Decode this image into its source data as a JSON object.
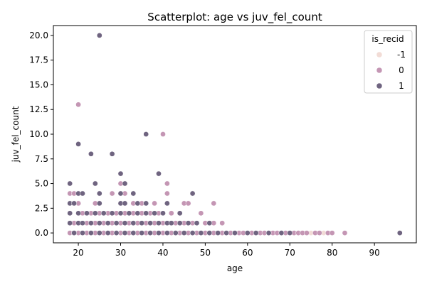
{
  "chart_data": {
    "type": "scatter",
    "title": "Scatterplot: age vs juv_fel_count",
    "xlabel": "age",
    "ylabel": "juv_fel_count",
    "xlim": [
      14.1,
      99.9
    ],
    "ylim": [
      -1.0,
      21.0
    ],
    "xticks": [
      20,
      30,
      40,
      50,
      60,
      70,
      80,
      90
    ],
    "xtick_labels": [
      "20",
      "30",
      "40",
      "50",
      "60",
      "70",
      "80",
      "90"
    ],
    "yticks": [
      0,
      2.5,
      5,
      7.5,
      10,
      12.5,
      15,
      17.5,
      20
    ],
    "ytick_labels": [
      "0.0",
      "2.5",
      "5.0",
      "7.5",
      "10.0",
      "12.5",
      "15.0",
      "17.5",
      "20.0"
    ],
    "grid": false,
    "legend": {
      "title": "is_recid",
      "placement": "top-right",
      "entries": [
        {
          "label": "-1",
          "color": "#f2dcd6"
        },
        {
          "label": "0",
          "color": "#c496b4"
        },
        {
          "label": "1",
          "color": "#6f6480"
        }
      ]
    },
    "series": [
      {
        "name": "-1",
        "color": "#f2dcd6",
        "points": [
          [
            18,
            0
          ],
          [
            19,
            0
          ],
          [
            22,
            0
          ],
          [
            25,
            0
          ],
          [
            28,
            0
          ],
          [
            31,
            0
          ],
          [
            34,
            0
          ],
          [
            37,
            0
          ],
          [
            39,
            0
          ],
          [
            41,
            0
          ],
          [
            44,
            0
          ],
          [
            47,
            0
          ],
          [
            50,
            0
          ],
          [
            53,
            0
          ],
          [
            56,
            0
          ],
          [
            75,
            0
          ],
          [
            78,
            0
          ],
          [
            19,
            1
          ],
          [
            23,
            1
          ],
          [
            27,
            1
          ],
          [
            33,
            1
          ],
          [
            38,
            1
          ]
        ]
      },
      {
        "name": "0",
        "color": "#c496b4",
        "points": [
          [
            20,
            13
          ],
          [
            40,
            10
          ],
          [
            41,
            5
          ],
          [
            41,
            4
          ],
          [
            52,
            3
          ],
          [
            45,
            3
          ],
          [
            49,
            2
          ],
          [
            46,
            3
          ],
          [
            38,
            3
          ],
          [
            35,
            3
          ],
          [
            33,
            3
          ],
          [
            31,
            4
          ],
          [
            30,
            5
          ],
          [
            28,
            4
          ],
          [
            24,
            3
          ],
          [
            20,
            3
          ],
          [
            18,
            4
          ],
          [
            19,
            4
          ],
          [
            21,
            2
          ],
          [
            23,
            2
          ],
          [
            25,
            2
          ],
          [
            27,
            2
          ],
          [
            29,
            2
          ],
          [
            31,
            2
          ],
          [
            33,
            2
          ],
          [
            35,
            2
          ],
          [
            37,
            2
          ],
          [
            39,
            2
          ],
          [
            42,
            2
          ],
          [
            19,
            1
          ],
          [
            22,
            1
          ],
          [
            24,
            1
          ],
          [
            26,
            1
          ],
          [
            28,
            1
          ],
          [
            30,
            1
          ],
          [
            32,
            1
          ],
          [
            34,
            1
          ],
          [
            36,
            1
          ],
          [
            38,
            1
          ],
          [
            40,
            1
          ],
          [
            43,
            1
          ],
          [
            45,
            1
          ],
          [
            47,
            1
          ],
          [
            50,
            1
          ],
          [
            52,
            1
          ],
          [
            54,
            1
          ],
          [
            18,
            0
          ],
          [
            19,
            0
          ],
          [
            20,
            0
          ],
          [
            21,
            0
          ],
          [
            22,
            0
          ],
          [
            23,
            0
          ],
          [
            24,
            0
          ],
          [
            25,
            0
          ],
          [
            26,
            0
          ],
          [
            27,
            0
          ],
          [
            28,
            0
          ],
          [
            29,
            0
          ],
          [
            30,
            0
          ],
          [
            31,
            0
          ],
          [
            32,
            0
          ],
          [
            33,
            0
          ],
          [
            34,
            0
          ],
          [
            35,
            0
          ],
          [
            36,
            0
          ],
          [
            37,
            0
          ],
          [
            38,
            0
          ],
          [
            39,
            0
          ],
          [
            40,
            0
          ],
          [
            41,
            0
          ],
          [
            42,
            0
          ],
          [
            43,
            0
          ],
          [
            44,
            0
          ],
          [
            45,
            0
          ],
          [
            46,
            0
          ],
          [
            47,
            0
          ],
          [
            48,
            0
          ],
          [
            49,
            0
          ],
          [
            50,
            0
          ],
          [
            51,
            0
          ],
          [
            52,
            0
          ],
          [
            53,
            0
          ],
          [
            54,
            0
          ],
          [
            55,
            0
          ],
          [
            56,
            0
          ],
          [
            57,
            0
          ],
          [
            58,
            0
          ],
          [
            59,
            0
          ],
          [
            60,
            0
          ],
          [
            61,
            0
          ],
          [
            62,
            0
          ],
          [
            63,
            0
          ],
          [
            64,
            0
          ],
          [
            65,
            0
          ],
          [
            66,
            0
          ],
          [
            67,
            0
          ],
          [
            68,
            0
          ],
          [
            69,
            0
          ],
          [
            70,
            0
          ],
          [
            71,
            0
          ],
          [
            72,
            0
          ],
          [
            73,
            0
          ],
          [
            74,
            0
          ],
          [
            76,
            0
          ],
          [
            77,
            0
          ],
          [
            79,
            0
          ],
          [
            80,
            0
          ],
          [
            83,
            0
          ]
        ]
      },
      {
        "name": "1",
        "color": "#6f6480",
        "points": [
          [
            25,
            20
          ],
          [
            36,
            10
          ],
          [
            20,
            9
          ],
          [
            23,
            8
          ],
          [
            28,
            8
          ],
          [
            30,
            6
          ],
          [
            39,
            6
          ],
          [
            18,
            5
          ],
          [
            24,
            5
          ],
          [
            31,
            5
          ],
          [
            20,
            4
          ],
          [
            21,
            4
          ],
          [
            25,
            4
          ],
          [
            30,
            4
          ],
          [
            33,
            4
          ],
          [
            47,
            4
          ],
          [
            18,
            3
          ],
          [
            19,
            3
          ],
          [
            25,
            3
          ],
          [
            30,
            3
          ],
          [
            31,
            3
          ],
          [
            34,
            3
          ],
          [
            36,
            3
          ],
          [
            41,
            3
          ],
          [
            18,
            2
          ],
          [
            20,
            2
          ],
          [
            22,
            2
          ],
          [
            24,
            2
          ],
          [
            26,
            2
          ],
          [
            28,
            2
          ],
          [
            30,
            2
          ],
          [
            32,
            2
          ],
          [
            34,
            2
          ],
          [
            36,
            2
          ],
          [
            38,
            2
          ],
          [
            40,
            2
          ],
          [
            44,
            2
          ],
          [
            18,
            1
          ],
          [
            20,
            1
          ],
          [
            21,
            1
          ],
          [
            23,
            1
          ],
          [
            25,
            1
          ],
          [
            27,
            1
          ],
          [
            29,
            1
          ],
          [
            31,
            1
          ],
          [
            33,
            1
          ],
          [
            35,
            1
          ],
          [
            37,
            1
          ],
          [
            39,
            1
          ],
          [
            41,
            1
          ],
          [
            42,
            1
          ],
          [
            44,
            1
          ],
          [
            46,
            1
          ],
          [
            48,
            1
          ],
          [
            51,
            1
          ],
          [
            19,
            0
          ],
          [
            21,
            0
          ],
          [
            23,
            0
          ],
          [
            25,
            0
          ],
          [
            27,
            0
          ],
          [
            29,
            0
          ],
          [
            31,
            0
          ],
          [
            33,
            0
          ],
          [
            35,
            0
          ],
          [
            37,
            0
          ],
          [
            39,
            0
          ],
          [
            41,
            0
          ],
          [
            43,
            0
          ],
          [
            45,
            0
          ],
          [
            47,
            0
          ],
          [
            49,
            0
          ],
          [
            51,
            0
          ],
          [
            53,
            0
          ],
          [
            55,
            0
          ],
          [
            57,
            0
          ],
          [
            60,
            0
          ],
          [
            62,
            0
          ],
          [
            65,
            0
          ],
          [
            68,
            0
          ],
          [
            70,
            0
          ],
          [
            96,
            0
          ]
        ]
      }
    ]
  }
}
